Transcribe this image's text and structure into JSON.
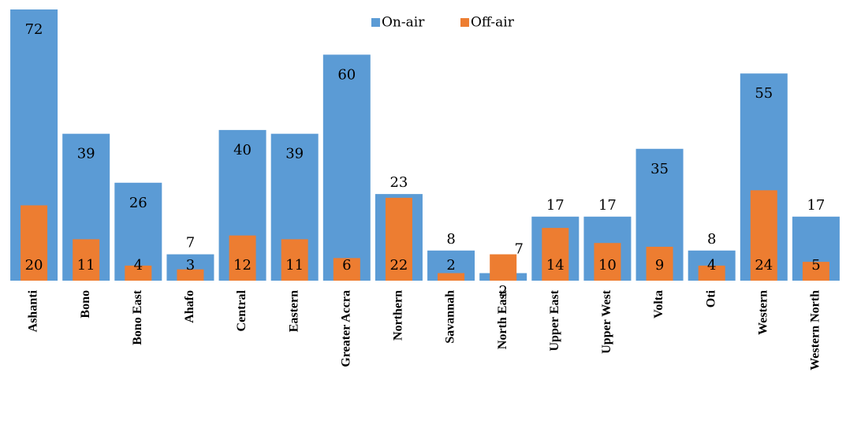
{
  "chart_data": {
    "type": "bar",
    "overlap": true,
    "categories": [
      "Ashanti",
      "Bono",
      "Bono East",
      "Ahafo",
      "Central",
      "Eastern",
      "Greater Accra",
      "Northern",
      "Savannah",
      "North East",
      "Upper East",
      "Upper West",
      "Volta",
      "Oti",
      "Western",
      "Western North"
    ],
    "series": [
      {
        "name": "On-air",
        "color": "#5b9bd5",
        "values": [
          72,
          39,
          26,
          7,
          40,
          39,
          60,
          23,
          8,
          2,
          17,
          17,
          35,
          8,
          55,
          17
        ]
      },
      {
        "name": "Off-air",
        "color": "#ed7d31",
        "values": [
          20,
          11,
          4,
          3,
          12,
          11,
          6,
          22,
          2,
          7,
          14,
          10,
          9,
          4,
          24,
          5
        ]
      }
    ],
    "legend": "top"
  }
}
